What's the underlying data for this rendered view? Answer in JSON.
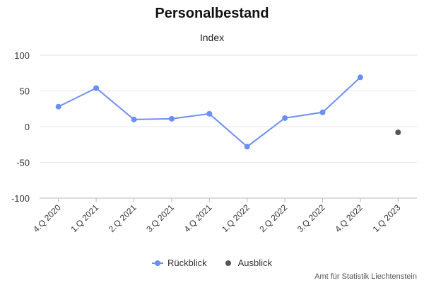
{
  "chart_data": {
    "type": "line",
    "title": "Personalbestand",
    "subtitle": "Index",
    "categories": [
      "4.Q 2020",
      "1.Q 2021",
      "2.Q 2021",
      "3.Q 2021",
      "4.Q 2021",
      "1.Q 2022",
      "2.Q 2022",
      "3.Q 2022",
      "4.Q 2022",
      "1.Q 2023"
    ],
    "ylim": [
      -100,
      100
    ],
    "yticks": [
      -100,
      -50,
      0,
      50,
      100
    ],
    "grid": true,
    "legend_position": "bottom-center",
    "series": [
      {
        "name": "Rückblick",
        "color": "#6b8ff2",
        "values": [
          28,
          54,
          10,
          11,
          18,
          -28,
          12,
          20,
          69,
          null
        ]
      },
      {
        "name": "Ausblick",
        "color": "#555555",
        "values": [
          null,
          null,
          null,
          null,
          null,
          null,
          null,
          null,
          null,
          -8
        ]
      }
    ]
  },
  "credit": "Amt für Statistik Liechtenstein"
}
